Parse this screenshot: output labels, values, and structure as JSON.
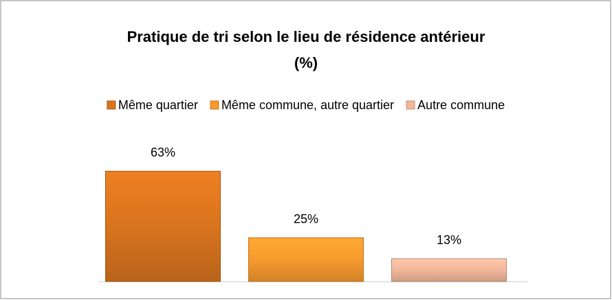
{
  "chart_data": {
    "type": "bar",
    "title": [
      "Pratique de tri selon le lieu de résidence antérieur",
      "(%)"
    ],
    "categories": [
      null
    ],
    "series": [
      {
        "name": "Même quartier",
        "color": "#d9741f",
        "values": [
          63
        ],
        "value_labels": [
          "63%"
        ]
      },
      {
        "name": "Même commune, autre quartier",
        "color": "#f79a2e",
        "values": [
          25
        ],
        "value_labels": [
          "25%"
        ]
      },
      {
        "name": "Autre commune",
        "color": "#f1b79b",
        "values": [
          13
        ],
        "value_labels": [
          "13%"
        ]
      }
    ],
    "legend": "top"
  }
}
